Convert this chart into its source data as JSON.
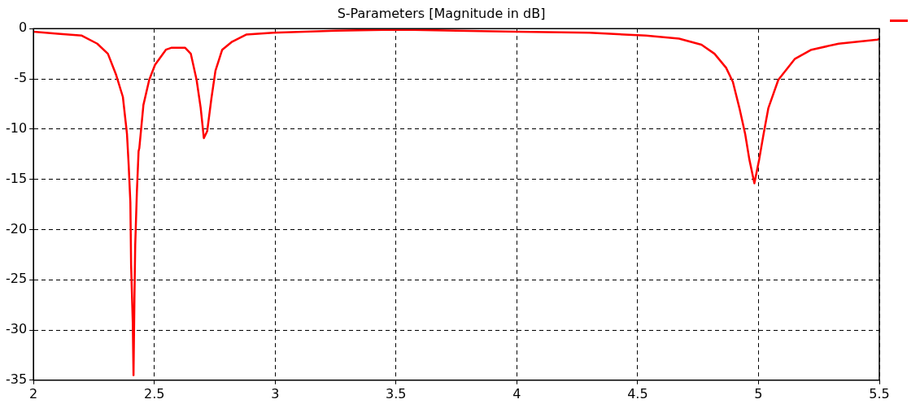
{
  "chart_data": {
    "type": "line",
    "title": "S-Parameters [Magnitude in dB]",
    "xlim": [
      2,
      5.5
    ],
    "xticks": [
      2,
      2.5,
      3,
      3.5,
      4,
      4.5,
      5,
      5.5
    ],
    "ylim": [
      -35,
      0
    ],
    "yticks": [
      -35,
      -30,
      -25,
      -20,
      -15,
      -10,
      -5,
      0
    ],
    "grid": true,
    "marker": "none",
    "line_style": "solid",
    "series": [
      {
        "color": "#ff0000",
        "x": [
          2,
          2.1,
          2.2,
          2.264,
          2.308,
          2.342,
          2.37,
          2.387,
          2.394,
          2.401,
          2.404,
          2.411,
          2.414,
          2.418,
          2.421,
          2.428,
          2.435,
          2.438,
          2.455,
          2.479,
          2.503,
          2.548,
          2.572,
          2.627,
          2.651,
          2.675,
          2.692,
          2.705,
          2.719,
          2.736,
          2.753,
          2.781,
          2.822,
          2.88,
          2.993,
          3.25,
          3.5,
          3.75,
          4,
          4.3,
          4.534,
          4.671,
          4.764,
          4.818,
          4.866,
          4.894,
          4.921,
          4.945,
          4.962,
          4.983,
          5.003,
          5.021,
          5.041,
          5.082,
          5.151,
          5.219,
          5.332,
          5.493,
          5.5
        ],
        "values": [
          -0.3,
          -0.5,
          -0.7,
          -1.5,
          -2.5,
          -4.6,
          -6.8,
          -10.5,
          -13.6,
          -17.3,
          -23.5,
          -29.3,
          -34.5,
          -26.5,
          -21.6,
          -16.2,
          -12.2,
          -11.9,
          -7.6,
          -5.1,
          -3.6,
          -2.1,
          -1.9,
          -1.9,
          -2.5,
          -5.1,
          -7.9,
          -10.9,
          -10.2,
          -7,
          -4.2,
          -2.1,
          -1.3,
          -0.6,
          -0.4,
          -0.2,
          -0.1,
          -0.2,
          -0.3,
          -0.4,
          -0.7,
          -1,
          -1.6,
          -2.5,
          -3.9,
          -5.3,
          -7.9,
          -10.5,
          -13,
          -15.4,
          -13,
          -10.5,
          -7.9,
          -5.1,
          -3,
          -2.1,
          -1.5,
          -1.1,
          -1
        ]
      }
    ]
  }
}
